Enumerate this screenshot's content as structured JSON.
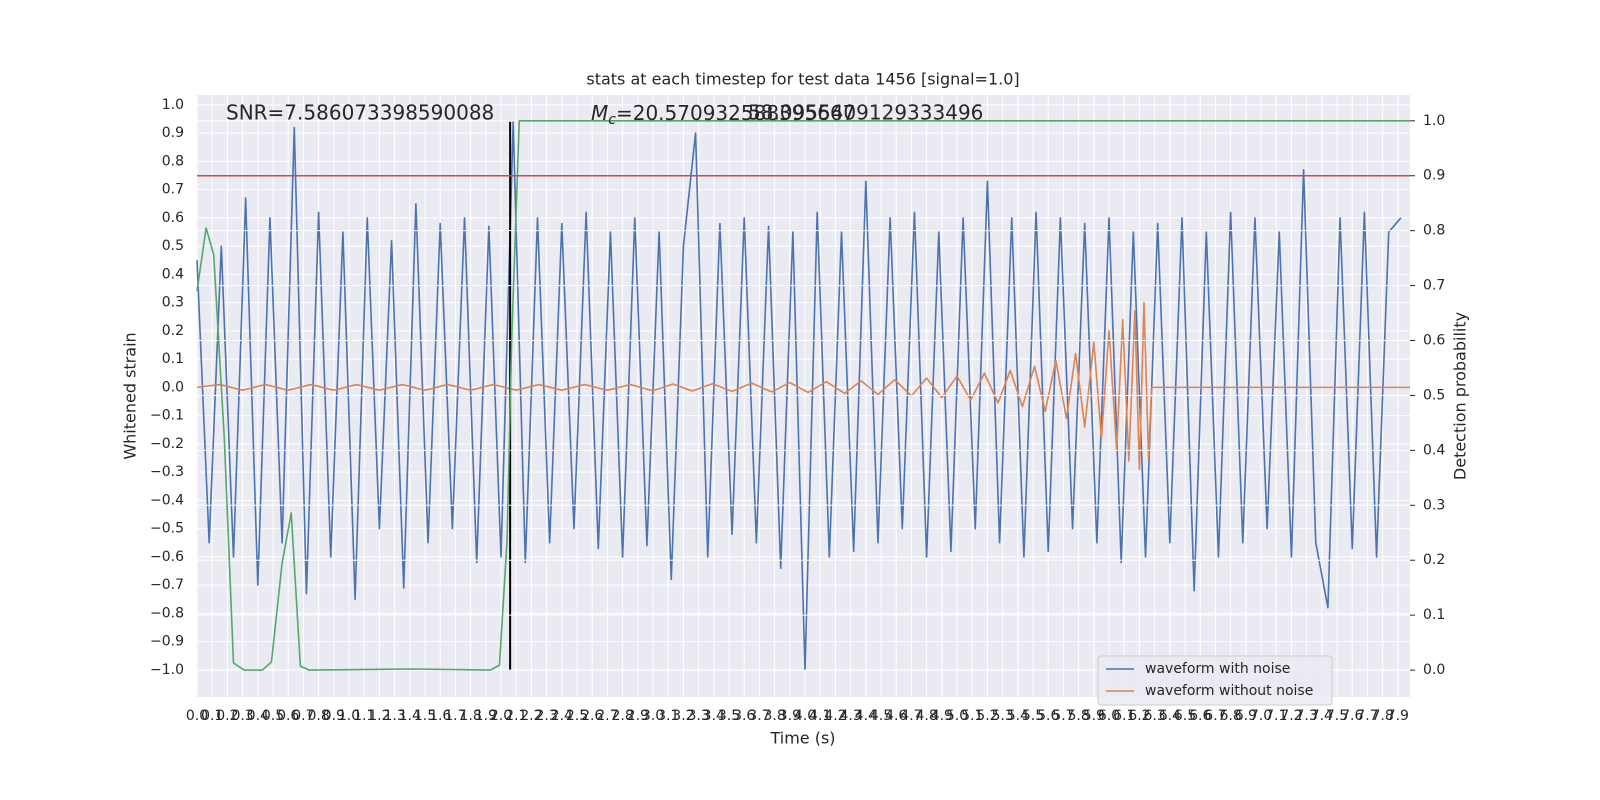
{
  "chart_data": {
    "type": "line",
    "title": "stats at each timestep for test data 1456 [signal=1.0]",
    "xlabel": "Time (s)",
    "ylabel": "Whitened strain",
    "y2label": "Detection probability",
    "annotations": [
      {
        "text": "SNR=7.586073398590088"
      },
      {
        "symbol": "M",
        "subscript": "c",
        "text": "=20.570932588395667"
      },
      {
        "text": "58.0955409129333496"
      }
    ],
    "xlim": [
      0,
      7.98
    ],
    "ylim": [
      -1.096,
      1.035
    ],
    "y2lim": [
      -0.049,
      1.047
    ],
    "grid": true,
    "legend": "lower right",
    "xticks": [
      {
        "value": 0,
        "label": "0.0"
      },
      0.1,
      0.2,
      0.3,
      0.4,
      0.5,
      0.6,
      0.7,
      0.8,
      0.9,
      {
        "value": 1,
        "label": "1.0"
      },
      1.1,
      1.2,
      1.3,
      1.4,
      1.5,
      1.6,
      1.7,
      1.8,
      1.9,
      {
        "value": 2,
        "label": "2.0"
      },
      2.1,
      2.2,
      2.3,
      2.4,
      2.5,
      2.6,
      2.7,
      2.8,
      2.9,
      {
        "value": 3,
        "label": "3.0"
      },
      3.1,
      3.2,
      3.3,
      3.4,
      3.5,
      3.6,
      3.7,
      3.8,
      3.9,
      {
        "value": 4,
        "label": "4.0"
      },
      4.1,
      4.2,
      4.3,
      4.4,
      4.5,
      4.6,
      4.7,
      4.8,
      4.9,
      {
        "value": 5,
        "label": "5.0"
      },
      5.1,
      5.2,
      5.3,
      5.4,
      5.5,
      5.6,
      5.7,
      5.8,
      5.9,
      {
        "value": 6,
        "label": "6.0"
      },
      6.1,
      6.2,
      6.3,
      6.4,
      6.5,
      6.6,
      6.7,
      6.8,
      6.9,
      {
        "value": 7,
        "label": "7.0"
      },
      7.1,
      7.2,
      7.3,
      7.4,
      7.5,
      7.6,
      7.7,
      7.8,
      7.9
    ],
    "yticks": [
      {
        "value": -1,
        "label": "−1.0"
      },
      {
        "value": -0.9,
        "label": "−0.9"
      },
      {
        "value": -0.8,
        "label": "−0.8"
      },
      {
        "value": -0.7,
        "label": "−0.7"
      },
      {
        "value": -0.6,
        "label": "−0.6"
      },
      {
        "value": -0.5,
        "label": "−0.5"
      },
      {
        "value": -0.4,
        "label": "−0.4"
      },
      {
        "value": -0.3,
        "label": "−0.3"
      },
      {
        "value": -0.2,
        "label": "−0.2"
      },
      {
        "value": -0.1,
        "label": "−0.1"
      },
      {
        "value": 0,
        "label": "0.0"
      },
      0.1,
      0.2,
      0.3,
      0.4,
      0.5,
      0.6,
      0.7,
      0.8,
      0.9,
      {
        "value": 1,
        "label": "1.0"
      }
    ],
    "y2ticks": [
      {
        "value": 0,
        "label": "0.0"
      },
      0.1,
      0.2,
      0.3,
      0.4,
      0.5,
      0.6,
      0.7,
      0.8,
      0.9,
      {
        "value": 1,
        "label": "1.0"
      }
    ],
    "hline": {
      "y2": 0.9,
      "color": "#c44e52"
    },
    "vline": {
      "x": 2.06,
      "ymin": -1.0,
      "ymax": 0.94,
      "color": "#000000"
    },
    "series": [
      {
        "name": "waveform with noise",
        "color": "#4c72b0",
        "x": [
          0,
          0.08,
          0.16,
          0.24,
          0.32,
          0.4,
          0.48,
          0.56,
          0.64,
          0.72,
          0.8,
          0.88,
          0.96,
          1.04,
          1.12,
          1.2,
          1.28,
          1.36,
          1.44,
          1.52,
          1.6,
          1.68,
          1.76,
          1.84,
          1.92,
          2,
          2.08,
          2.16,
          2.24,
          2.32,
          2.4,
          2.48,
          2.56,
          2.64,
          2.72,
          2.8,
          2.88,
          2.96,
          3.04,
          3.12,
          3.2,
          3.28,
          3.36,
          3.44,
          3.52,
          3.6,
          3.68,
          3.76,
          3.84,
          3.92,
          4,
          4.08,
          4.16,
          4.24,
          4.32,
          4.4,
          4.48,
          4.56,
          4.64,
          4.72,
          4.8,
          4.88,
          4.96,
          5.04,
          5.12,
          5.2,
          5.28,
          5.36,
          5.44,
          5.52,
          5.6,
          5.68,
          5.76,
          5.84,
          5.92,
          6,
          6.08,
          6.16,
          6.24,
          6.32,
          6.4,
          6.48,
          6.56,
          6.64,
          6.72,
          6.8,
          6.88,
          6.96,
          7.04,
          7.12,
          7.2,
          7.28,
          7.36,
          7.44,
          7.52,
          7.6,
          7.68,
          7.76,
          7.84,
          7.92
        ],
        "values": [
          0.45,
          -0.55,
          0.5,
          -0.6,
          0.67,
          -0.7,
          0.6,
          -0.55,
          0.92,
          -0.73,
          0.62,
          -0.6,
          0.55,
          -0.75,
          0.6,
          -0.5,
          0.52,
          -0.71,
          0.65,
          -0.55,
          0.58,
          -0.5,
          0.6,
          -0.62,
          0.57,
          -0.6,
          0.94,
          -0.62,
          0.6,
          -0.55,
          0.58,
          -0.5,
          0.62,
          -0.57,
          0.55,
          -0.6,
          0.6,
          -0.56,
          0.55,
          -0.68,
          0.5,
          0.9,
          -0.6,
          0.58,
          -0.52,
          0.6,
          -0.55,
          0.57,
          -0.64,
          0.55,
          -1.0,
          0.62,
          -0.6,
          0.55,
          -0.58,
          0.73,
          -0.55,
          0.6,
          -0.5,
          0.62,
          -0.6,
          0.55,
          -0.58,
          0.6,
          -0.5,
          0.73,
          -0.55,
          0.6,
          -0.6,
          0.62,
          -0.58,
          0.6,
          -0.5,
          0.58,
          -0.55,
          0.6,
          -0.62,
          0.55,
          -0.6,
          0.58,
          -0.55,
          0.6,
          -0.72,
          0.55,
          -0.6,
          0.62,
          -0.55,
          0.6,
          -0.5,
          0.55,
          -0.6,
          0.77,
          -0.55,
          -0.78,
          0.6,
          -0.57,
          0.62,
          -0.6,
          0.55,
          0.6
        ]
      },
      {
        "name": "waveform without noise",
        "color": "#dd8452",
        "x": [
          0,
          0.15,
          0.3,
          0.45,
          0.6,
          0.75,
          0.9,
          1.05,
          1.2,
          1.35,
          1.5,
          1.65,
          1.8,
          1.95,
          2.1,
          2.25,
          2.4,
          2.55,
          2.7,
          2.85,
          3.0,
          3.13,
          3.26,
          3.39,
          3.52,
          3.65,
          3.78,
          3.9,
          4.02,
          4.14,
          4.26,
          4.37,
          4.48,
          4.59,
          4.7,
          4.8,
          4.9,
          5.0,
          5.09,
          5.18,
          5.27,
          5.35,
          5.43,
          5.51,
          5.58,
          5.65,
          5.72,
          5.78,
          5.84,
          5.9,
          5.95,
          6.0,
          6.05,
          6.09,
          6.13,
          6.17,
          6.2,
          6.23,
          6.26,
          6.28,
          7.98
        ],
        "values": [
          0,
          0.01,
          -0.01,
          0.01,
          -0.01,
          0.01,
          -0.01,
          0.01,
          -0.01,
          0.01,
          -0.01,
          0.01,
          -0.01,
          0.01,
          -0.01,
          0.01,
          -0.01,
          0.01,
          -0.01,
          0.01,
          -0.012,
          0.012,
          -0.013,
          0.013,
          -0.014,
          0.015,
          -0.016,
          0.017,
          -0.018,
          0.02,
          -0.021,
          0.023,
          -0.025,
          0.027,
          -0.03,
          0.033,
          -0.036,
          0.04,
          -0.045,
          0.05,
          -0.055,
          0.06,
          -0.068,
          0.075,
          -0.085,
          0.095,
          -0.11,
          0.12,
          -0.14,
          0.16,
          -0.18,
          0.2,
          -0.22,
          0.24,
          -0.26,
          0.27,
          -0.29,
          0.3,
          -0.25,
          0,
          0
        ]
      },
      {
        "color": "#55a868",
        "axis": "y2",
        "x": [
          0,
          0.06,
          0.11,
          0.18,
          0.24,
          0.31,
          0.43,
          0.49,
          0.56,
          0.62,
          0.68,
          0.74,
          1.43,
          1.93,
          1.99,
          2.04,
          2.07,
          2.12,
          7.98
        ],
        "values": [
          0.69,
          0.805,
          0.756,
          0.42,
          0.013,
          0,
          0,
          0.015,
          0.195,
          0.286,
          0.007,
          0,
          0.002,
          0,
          0.009,
          0.237,
          0.6,
          1.0,
          1.0
        ]
      }
    ]
  }
}
